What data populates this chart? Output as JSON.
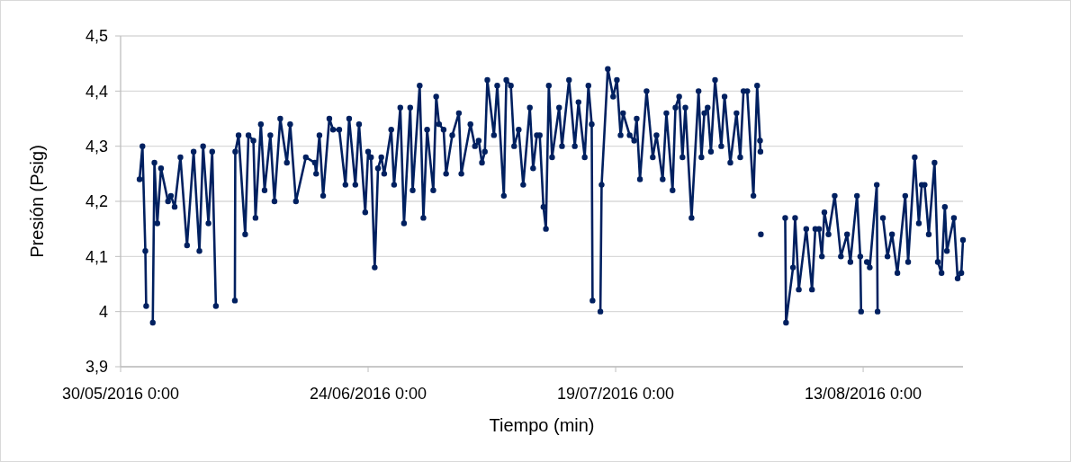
{
  "chart_data": {
    "type": "line",
    "xlabel": "Tiempo (min)",
    "ylabel": "Presión (Psig)",
    "xlim": [
      "2016-05-30",
      "2016-08-23T02:00"
    ],
    "ylim": [
      3.9,
      4.5
    ],
    "xticks": [
      {
        "value": "2016-05-30",
        "label": "30/05/2016 0:00"
      },
      {
        "value": "2016-06-24",
        "label": "24/06/2016 0:00"
      },
      {
        "value": "2016-07-19",
        "label": "19/07/2016 0:00"
      },
      {
        "value": "2016-08-13",
        "label": "13/08/2016 0:00"
      }
    ],
    "yticks": [
      {
        "value": 3.9,
        "label": "3,9"
      },
      4,
      {
        "value": 4.1,
        "label": "4,1"
      },
      {
        "value": 4.2,
        "label": "4,2"
      },
      {
        "value": 4.3,
        "label": "4,3"
      },
      {
        "value": 4.4,
        "label": "4,4"
      },
      {
        "value": 4.5,
        "label": "4,5"
      }
    ],
    "grid": "y",
    "marker": "circle",
    "line_style": "solid",
    "series": [
      {
        "color": "#002060",
        "x": [
          "2016-05-31T22:00",
          "2016-06-01T05:00",
          "2016-06-01T12:00",
          "2016-06-01T14:00",
          "2016-06-02T00:00",
          "2016-06-02T06:00",
          "2016-06-02T10:00",
          "2016-06-02T17:00",
          "2016-06-03T02:00",
          "2016-06-03T19:00",
          "2016-06-04T02:00",
          "2016-06-04T11:00",
          "2016-06-05T01:00",
          "2016-06-05T17:00",
          "2016-06-06T09:00",
          "2016-06-06T23:00",
          "2016-06-07T08:00",
          "2016-06-07T21:00",
          "2016-06-08T06:00",
          "2016-06-08T15:00",
          "2016-06-09T12:00",
          "2016-06-10T13:00",
          "2016-06-10T14:00",
          "2016-06-10T22:00",
          "2016-06-11T14:00",
          "2016-06-11T22:00",
          "2016-06-12T10:00",
          "2016-06-12T15:00",
          "2016-06-13T04:00",
          "2016-06-13T13:00",
          "2016-06-14T03:00",
          "2016-06-14T13:00",
          "2016-06-15T03:00",
          "2016-06-15T19:00",
          "2016-06-16T03:00",
          "2016-06-16T17:00",
          "2016-06-17T17:00",
          "2016-06-18T15:00",
          "2016-06-18T18:00",
          "2016-06-19T02:00",
          "2016-06-19T11:00",
          "2016-06-20T02:00",
          "2016-06-20T11:00",
          "2016-06-21T02:00",
          "2016-06-21T17:00",
          "2016-06-22T02:00",
          "2016-06-22T17:00",
          "2016-06-23T02:00",
          "2016-06-23T17:00",
          "2016-06-24T00:00",
          "2016-06-24T07:00",
          "2016-06-24T16:00",
          "2016-06-25T00:00",
          "2016-06-25T08:00",
          "2016-06-25T15:00",
          "2016-06-26T08:00",
          "2016-06-26T15:00",
          "2016-06-27T06:00",
          "2016-06-27T15:00",
          "2016-06-28T06:00",
          "2016-06-28T12:00",
          "2016-06-29T05:00",
          "2016-06-29T14:00",
          "2016-06-29T23:00",
          "2016-06-30T14:00",
          "2016-06-30T21:00",
          "2016-07-01T04:00",
          "2016-07-01T15:00",
          "2016-07-01T21:00",
          "2016-07-02T12:00",
          "2016-07-03T04:00",
          "2016-07-03T10:00",
          "2016-07-04T08:00",
          "2016-07-04T19:00",
          "2016-07-05T04:00",
          "2016-07-05T12:00",
          "2016-07-05T19:00",
          "2016-07-06T01:00",
          "2016-07-06T17:00",
          "2016-07-07T01:00",
          "2016-07-07T17:00",
          "2016-07-07T23:00",
          "2016-07-08T10:00",
          "2016-07-08T18:00",
          "2016-07-09T05:00",
          "2016-07-09T16:00",
          "2016-07-10T08:00",
          "2016-07-10T16:00",
          "2016-07-11T01:00",
          "2016-07-11T08:00",
          "2016-07-11T17:00",
          "2016-07-11T23:00",
          "2016-07-12T06:00",
          "2016-07-12T14:00",
          "2016-07-13T07:00",
          "2016-07-13T14:00",
          "2016-07-14T07:00",
          "2016-07-14T21:00",
          "2016-07-15T06:00",
          "2016-07-15T21:00",
          "2016-07-16T06:00",
          "2016-07-16T14:00",
          "2016-07-16T16:00",
          "2016-07-17T00:00",
          "2016-07-17T11:00",
          "2016-07-17T14:00",
          "2016-07-18T05:00",
          "2016-07-18T18:00",
          "2016-07-19T03:00",
          "2016-07-19T12:00",
          "2016-07-19T18:00",
          "2016-07-20T10:00",
          "2016-07-20T21:00",
          "2016-07-21T03:00",
          "2016-07-21T11:00",
          "2016-07-22T03:00",
          "2016-07-22T18:00",
          "2016-07-23T03:00",
          "2016-07-23T18:00",
          "2016-07-24T03:00",
          "2016-07-24T18:00",
          "2016-07-25T01:00",
          "2016-07-25T10:00",
          "2016-07-25T18:00",
          "2016-07-26T01:00",
          "2016-07-26T16:00",
          "2016-07-27T09:00",
          "2016-07-27T16:00",
          "2016-07-27T23:00",
          "2016-07-28T07:00",
          "2016-07-28T15:00",
          "2016-07-29T01:00",
          "2016-07-29T16:00",
          "2016-07-30T00:00",
          "2016-07-30T14:00",
          "2016-07-31T05:00",
          "2016-07-31T14:00",
          "2016-07-31T22:00",
          "2016-08-01T07:00",
          "2016-08-01T22:00",
          "2016-08-02T07:00",
          "2016-08-02T14:00",
          "2016-08-02T15:00",
          "2016-08-02T15:30",
          "2016-08-02T16:00",
          "2016-08-04T00:00",
          "2016-08-05T03:00",
          "2016-08-05T05:00",
          "2016-08-05T22:00",
          "2016-08-06T03:00",
          "2016-08-06T12:00",
          "2016-08-07T06:00",
          "2016-08-07T20:00",
          "2016-08-08T04:00",
          "2016-08-08T13:00",
          "2016-08-08T20:00",
          "2016-08-09T02:00",
          "2016-08-09T12:00",
          "2016-08-10T03:00",
          "2016-08-10T18:00",
          "2016-08-11T09:00",
          "2016-08-11T17:00",
          "2016-08-12T09:00",
          "2016-08-12T17:00",
          "2016-08-12T19:00",
          "2016-08-13T02:00",
          "2016-08-13T09:00",
          "2016-08-13T16:00",
          "2016-08-14T09:00",
          "2016-08-14T11:00",
          "2016-08-14T18:00",
          "2016-08-15T00:00",
          "2016-08-15T11:00",
          "2016-08-15T22:00",
          "2016-08-16T11:00",
          "2016-08-17T06:00",
          "2016-08-17T13:00",
          "2016-08-18T05:00",
          "2016-08-18T15:00",
          "2016-08-18T22:00",
          "2016-08-19T05:00",
          "2016-08-19T15:00",
          "2016-08-20T05:00",
          "2016-08-20T13:00",
          "2016-08-20T22:00",
          "2016-08-21T06:00",
          "2016-08-21T11:00",
          "2016-08-22T04:00",
          "2016-08-22T13:00",
          "2016-08-22T22:00",
          "2016-08-23T02:00"
        ],
        "values": [
          4.24,
          4.3,
          4.11,
          4.01,
          null,
          3.98,
          4.27,
          4.16,
          4.26,
          4.2,
          4.21,
          4.19,
          4.28,
          4.12,
          4.29,
          4.11,
          4.3,
          4.16,
          4.29,
          4.01,
          null,
          4.02,
          4.29,
          4.32,
          4.14,
          4.32,
          4.31,
          4.17,
          4.34,
          4.22,
          4.32,
          4.2,
          4.35,
          4.27,
          4.34,
          4.2,
          4.28,
          4.27,
          4.25,
          4.32,
          4.21,
          4.35,
          4.33,
          4.33,
          4.23,
          4.35,
          4.23,
          4.34,
          4.18,
          4.29,
          4.28,
          4.08,
          4.26,
          4.28,
          4.25,
          4.33,
          4.23,
          4.37,
          4.16,
          4.37,
          4.22,
          4.41,
          4.17,
          4.33,
          4.22,
          4.39,
          4.34,
          4.33,
          4.25,
          4.32,
          4.36,
          4.25,
          4.34,
          4.3,
          4.31,
          4.27,
          4.29,
          4.42,
          4.32,
          4.41,
          4.21,
          4.42,
          4.41,
          4.3,
          4.33,
          4.23,
          4.37,
          4.26,
          4.32,
          4.32,
          4.19,
          4.15,
          4.41,
          4.28,
          4.37,
          4.3,
          4.42,
          4.3,
          4.38,
          4.28,
          4.41,
          4.34,
          4.02,
          null,
          4.0,
          4.23,
          4.44,
          4.39,
          4.42,
          4.32,
          4.36,
          4.32,
          4.31,
          4.35,
          4.24,
          4.4,
          4.28,
          4.32,
          4.24,
          4.36,
          4.22,
          4.37,
          4.39,
          4.28,
          4.37,
          4.17,
          4.4,
          4.28,
          4.36,
          4.37,
          4.29,
          4.42,
          4.3,
          4.39,
          4.27,
          4.36,
          4.28,
          4.4,
          4.4,
          4.21,
          4.41,
          4.31,
          4.29,
          null,
          4.14,
          null,
          4.17,
          3.98,
          4.08,
          4.17,
          4.04,
          4.15,
          4.04,
          4.15,
          4.15,
          4.1,
          4.18,
          4.14,
          4.21,
          4.1,
          4.14,
          4.09,
          4.21,
          4.1,
          4.0,
          null,
          4.09,
          4.08,
          4.23,
          4.0,
          null,
          4.17,
          4.1,
          4.14,
          4.07,
          4.21,
          4.09,
          4.28,
          4.16,
          4.23,
          4.23,
          4.14,
          4.27,
          4.09,
          4.07,
          4.19,
          4.11,
          4.17,
          4.06,
          4.07,
          4.13
        ]
      }
    ]
  }
}
